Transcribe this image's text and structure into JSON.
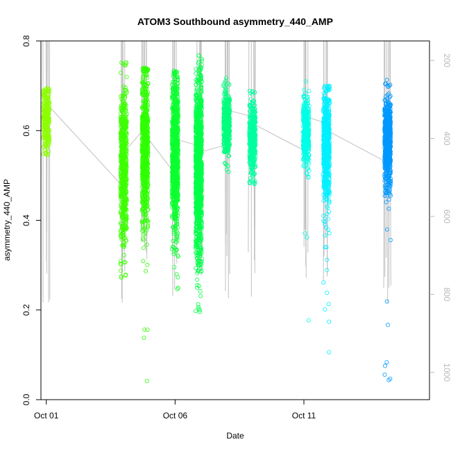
{
  "chart_data": {
    "type": "scatter",
    "title": "ATOM3 Southbound asymmetry_440_AMP",
    "xlabel": "Date",
    "ylabel": "asymmetry_440_AMP",
    "xlim": [
      "2016-09-30T19:00",
      "2016-10-15T21:00"
    ],
    "ylim": [
      0,
      0.8
    ],
    "x_ticks": [
      {
        "date": "2016-10-01",
        "label": "Oct 01"
      },
      {
        "date": "2016-10-06",
        "label": "Oct 06"
      },
      {
        "date": "2016-10-11",
        "label": "Oct 11"
      }
    ],
    "y_ticks": [
      0.0,
      0.2,
      0.4,
      0.6,
      0.8
    ],
    "y_tick_labels": [
      "0.0",
      "0.2",
      "0.4",
      "0.6",
      "0.8"
    ],
    "secondary_axis": {
      "label": "",
      "lim": [
        1070,
        150
      ],
      "ticks": [
        200,
        400,
        600,
        800,
        1000
      ],
      "tick_labels": [
        "200",
        "400",
        "600",
        "800",
        "1000"
      ],
      "color": "#b8b8b8"
    },
    "grid": false,
    "legend": "none",
    "marker": "open-circle",
    "color_scale": "rainbow (yellow-green to blue over time)",
    "profile_line_color": "#c0c0c0",
    "series": [
      {
        "date": "2016-10-01T00:00",
        "color": "#8cff00",
        "center": 0.63,
        "spread": 0.035,
        "min": 0.545,
        "max": 0.695,
        "n": 260
      },
      {
        "date": "2016-10-04T00:00",
        "color": "#3cff00",
        "center": 0.52,
        "spread": 0.085,
        "min": 0.255,
        "max": 0.755,
        "n": 650
      },
      {
        "date": "2016-10-04T20:00",
        "color": "#2eff00",
        "center": 0.56,
        "spread": 0.09,
        "min": 0.035,
        "max": 0.74,
        "n": 700
      },
      {
        "date": "2016-10-06T00:00",
        "color": "#0cff30",
        "center": 0.55,
        "spread": 0.085,
        "min": 0.22,
        "max": 0.735,
        "n": 900
      },
      {
        "date": "2016-10-06T22:00",
        "color": "#00ff48",
        "center": 0.52,
        "spread": 0.095,
        "min": 0.195,
        "max": 0.77,
        "n": 1200
      },
      {
        "date": "2016-10-08T00:00",
        "color": "#00ff7e",
        "center": 0.615,
        "spread": 0.035,
        "min": 0.5,
        "max": 0.72,
        "n": 420
      },
      {
        "date": "2016-10-09T00:00",
        "color": "#00ffa0",
        "center": 0.585,
        "spread": 0.04,
        "min": 0.48,
        "max": 0.74,
        "n": 420
      },
      {
        "date": "2016-10-11T02:00",
        "color": "#00ffe6",
        "center": 0.6,
        "spread": 0.04,
        "min": 0.05,
        "max": 0.76,
        "n": 360
      },
      {
        "date": "2016-10-11T21:00",
        "color": "#00f0ff",
        "center": 0.57,
        "spread": 0.065,
        "min": 0.03,
        "max": 0.7,
        "n": 650
      },
      {
        "date": "2016-10-14T06:00",
        "color": "#0099ff",
        "center": 0.575,
        "spread": 0.05,
        "min": 0.025,
        "max": 0.715,
        "n": 650
      }
    ]
  }
}
